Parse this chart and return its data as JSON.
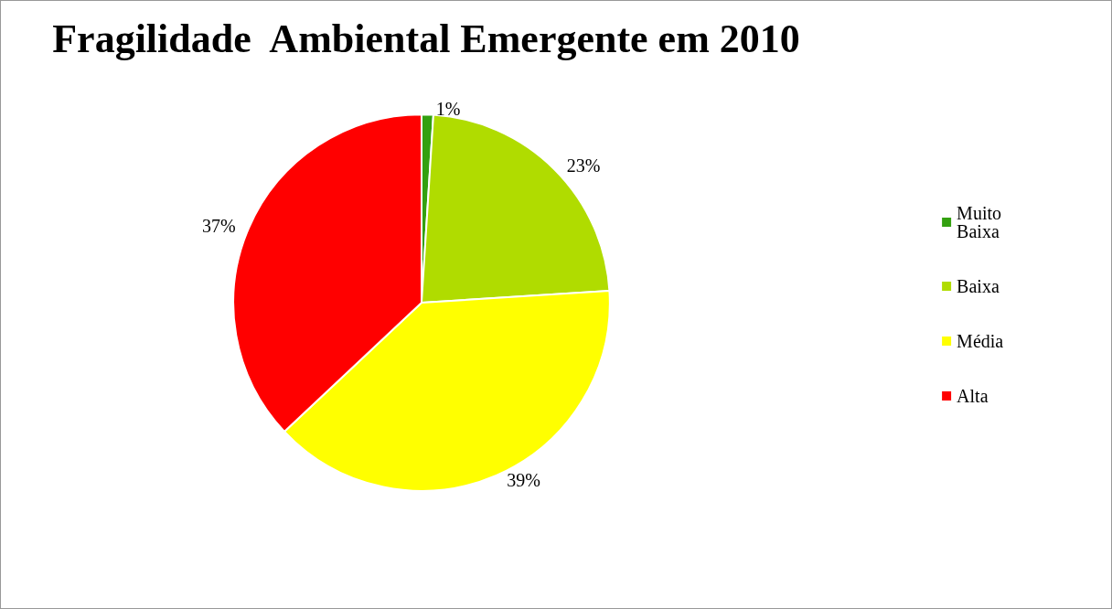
{
  "chart_data": {
    "type": "pie",
    "title": "Fragilidade  Ambiental Emergente em 2010",
    "categories": [
      "Muito Baixa",
      "Baixa",
      "Média",
      "Alta"
    ],
    "values": [
      1,
      23,
      39,
      37
    ],
    "colors": [
      "#33a010",
      "#b0dc00",
      "#ffff00",
      "#ff0000"
    ],
    "value_labels": [
      "1%",
      "23%",
      "39%",
      "37%"
    ],
    "legend": "right"
  }
}
